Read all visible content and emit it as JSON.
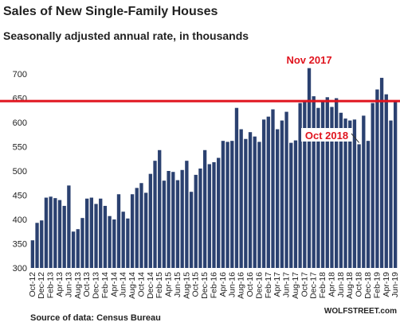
{
  "chart_data": {
    "type": "bar",
    "title": "Sales of New Single-Family Houses",
    "subtitle": "Seasonally adjusted annual rate, in thousands",
    "source": "Source of data: Census Bureau",
    "credit": "WOLFSTREET.com",
    "annotations": [
      "Nov 2017",
      "Oct 2018"
    ],
    "categories": [
      "Oct-12",
      null,
      "Dec-12",
      null,
      "Feb-13",
      null,
      "Apr-13",
      null,
      "Jun-13",
      null,
      "Aug-13",
      null,
      "Oct-13",
      null,
      "Dec-13",
      null,
      "Feb-14",
      null,
      "Apr-14",
      null,
      "Jun-14",
      null,
      "Aug-14",
      null,
      "Oct-14",
      null,
      "Dec-14",
      null,
      "Feb-15",
      null,
      "Apr-15",
      null,
      "Jun-15",
      null,
      "Aug-15",
      null,
      "Oct-15",
      null,
      "Dec-15",
      null,
      "Feb-16",
      null,
      "Apr-16",
      null,
      "Jun-16",
      null,
      "Aug-16",
      null,
      "Oct-16",
      null,
      "Dec-16",
      null,
      "Feb-17",
      null,
      "Apr-17",
      null,
      "Jun-17",
      null,
      "Aug-17",
      null,
      "Oct-17",
      null,
      "Dec-17",
      null,
      "Feb-18",
      null,
      "Apr-18",
      null,
      "Jun-18",
      null,
      "Aug-18",
      null,
      "Oct-18",
      null,
      "Dec-18",
      null,
      "Feb-19",
      null,
      "Apr-19",
      null,
      "Jun-19"
    ],
    "values": [
      357,
      393,
      398,
      445,
      447,
      444,
      440,
      428,
      470,
      375,
      380,
      403,
      443,
      445,
      432,
      443,
      428,
      407,
      400,
      452,
      416,
      402,
      452,
      465,
      475,
      455,
      494,
      521,
      543,
      480,
      500,
      498,
      481,
      502,
      521,
      457,
      492,
      505,
      543,
      514,
      518,
      527,
      562,
      560,
      562,
      630,
      586,
      566,
      580,
      571,
      560,
      606,
      612,
      627,
      586,
      604,
      622,
      558,
      563,
      640,
      645,
      712,
      654,
      630,
      644,
      652,
      632,
      650,
      620,
      608,
      604,
      606,
      555,
      614,
      562,
      640,
      668,
      692,
      658,
      604,
      644
    ],
    "color": "#2b4170",
    "reference_line": 644,
    "reference_color": "#e0141e",
    "ylim": [
      300,
      700
    ],
    "yticks": [
      300,
      350,
      400,
      450,
      500,
      550,
      600,
      650,
      700
    ],
    "grid": false
  }
}
